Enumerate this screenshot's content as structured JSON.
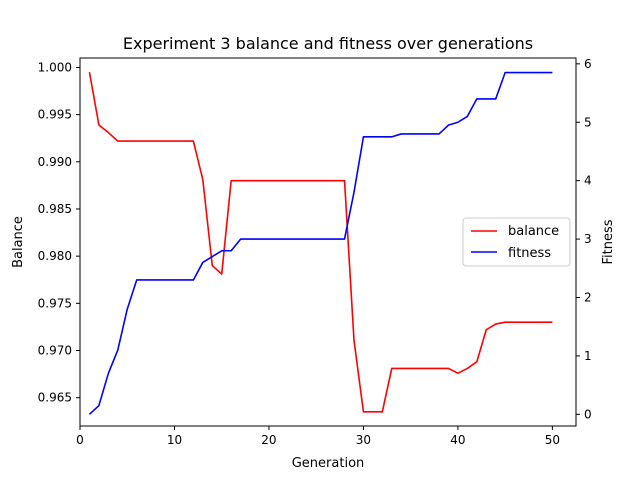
{
  "chart_data": {
    "type": "line",
    "title": "Experiment 3 balance and fitness over generations",
    "xlabel": "Generation",
    "ylabel_left": "Balance",
    "ylabel_right": "Fitness",
    "xlim": [
      0,
      52.5
    ],
    "ylim_left": [
      0.962,
      1.001
    ],
    "ylim_right": [
      -0.2,
      6.1
    ],
    "x_ticks": [
      0,
      10,
      20,
      30,
      40,
      50
    ],
    "y_left_ticks": [
      0.965,
      0.97,
      0.975,
      0.98,
      0.985,
      0.99,
      0.995,
      1.0
    ],
    "y_left_tick_labels": [
      "0.965",
      "0.970",
      "0.975",
      "0.980",
      "0.985",
      "0.990",
      "0.995",
      "1.000"
    ],
    "y_right_ticks": [
      0,
      1,
      2,
      3,
      4,
      5,
      6
    ],
    "legend_position": "center-right",
    "grid": false,
    "x": [
      1,
      2,
      3,
      4,
      5,
      6,
      7,
      8,
      9,
      10,
      11,
      12,
      13,
      14,
      15,
      16,
      17,
      18,
      19,
      20,
      21,
      22,
      23,
      24,
      25,
      26,
      27,
      28,
      29,
      30,
      31,
      32,
      33,
      34,
      35,
      36,
      37,
      38,
      39,
      40,
      41,
      42,
      43,
      44,
      45,
      46,
      47,
      48,
      49,
      50
    ],
    "series": [
      {
        "name": "balance",
        "axis": "left",
        "color": "#ff0000",
        "values": [
          0.9995,
          0.9939,
          0.9931,
          0.9922,
          0.9922,
          0.9922,
          0.9922,
          0.9922,
          0.9922,
          0.9922,
          0.9922,
          0.9922,
          0.9881,
          0.979,
          0.9781,
          0.988,
          0.988,
          0.988,
          0.988,
          0.988,
          0.988,
          0.988,
          0.988,
          0.988,
          0.988,
          0.988,
          0.988,
          0.988,
          0.9711,
          0.9635,
          0.9635,
          0.9635,
          0.9681,
          0.9681,
          0.9681,
          0.9681,
          0.9681,
          0.9681,
          0.9681,
          0.9676,
          0.9681,
          0.9688,
          0.9722,
          0.9728,
          0.973,
          0.973,
          0.973,
          0.973,
          0.973,
          0.973
        ]
      },
      {
        "name": "fitness",
        "axis": "right",
        "color": "#0000ff",
        "values": [
          0.0,
          0.15,
          0.7,
          1.1,
          1.8,
          2.3,
          2.3,
          2.3,
          2.3,
          2.3,
          2.3,
          2.3,
          2.6,
          2.7,
          2.8,
          2.8,
          3.0,
          3.0,
          3.0,
          3.0,
          3.0,
          3.0,
          3.0,
          3.0,
          3.0,
          3.0,
          3.0,
          3.0,
          3.8,
          4.75,
          4.75,
          4.75,
          4.75,
          4.8,
          4.8,
          4.8,
          4.8,
          4.8,
          4.95,
          5.0,
          5.1,
          5.4,
          5.4,
          5.4,
          5.85,
          5.85,
          5.85,
          5.85,
          5.85,
          5.85
        ]
      }
    ]
  }
}
